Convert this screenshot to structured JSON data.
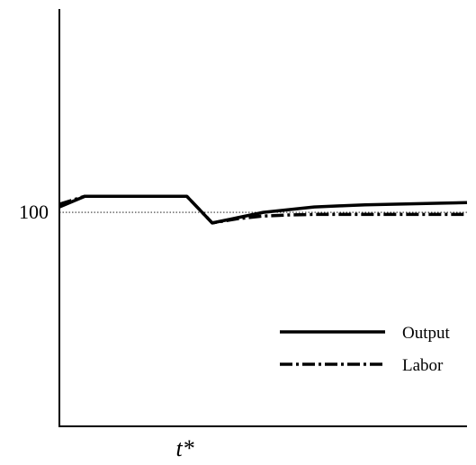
{
  "chart_data": {
    "type": "line",
    "title": "",
    "xlabel": "",
    "ylabel": "",
    "x_marker": {
      "label": "t*",
      "x": 5
    },
    "y_reference": {
      "label": "100",
      "value": 100,
      "style": "dotted"
    },
    "xlim": [
      0,
      16
    ],
    "ylim": [
      96,
      103.8
    ],
    "grid": false,
    "legend": {
      "position": "bottom-right"
    },
    "series": [
      {
        "name": "Output",
        "style": "solid",
        "color": "#000000",
        "x": [
          0,
          1,
          2,
          3,
          4,
          5,
          6,
          7,
          8,
          9,
          10,
          11,
          12,
          13,
          14,
          15,
          16
        ],
        "y": [
          100.1,
          100.3,
          100.3,
          100.3,
          100.3,
          100.3,
          99.8,
          99.9,
          100.0,
          100.05,
          100.1,
          100.12,
          100.14,
          100.15,
          100.16,
          100.17,
          100.18
        ]
      },
      {
        "name": "Labor",
        "style": "dash-dot",
        "color": "#000000",
        "x": [
          0,
          1,
          2,
          3,
          4,
          5,
          6,
          7,
          8,
          9,
          10,
          11,
          12,
          13,
          14,
          15,
          16
        ],
        "y": [
          100.15,
          100.3,
          100.3,
          100.3,
          100.3,
          100.3,
          99.8,
          99.88,
          99.93,
          99.95,
          99.96,
          99.96,
          99.96,
          99.96,
          99.96,
          99.96,
          99.96
        ]
      }
    ]
  }
}
